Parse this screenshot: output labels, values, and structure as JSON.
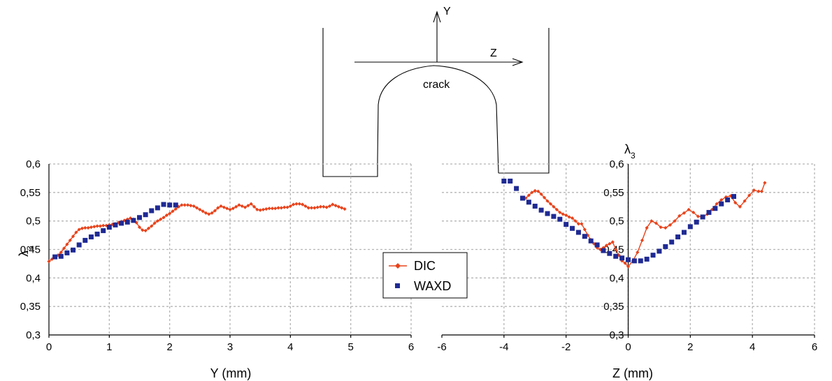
{
  "colors": {
    "dic": "#e8431b",
    "waxd": "#1f2a93",
    "grid": "#b5b5b5",
    "axis": "#000000"
  },
  "sketch": {
    "y_axis_label": "Y",
    "z_axis_label": "Z",
    "crack_label": "crack"
  },
  "legend": {
    "position": "center",
    "items": [
      {
        "label": "DIC",
        "marker": "diamond-line"
      },
      {
        "label": "WAXD",
        "marker": "square"
      }
    ]
  },
  "chart_data": [
    {
      "type": "line",
      "xlabel": "Y (mm)",
      "ylabel": "λ3",
      "ylabel_main": "λ",
      "ylabel_sub": "3",
      "xlim": [
        0,
        6
      ],
      "ylim": [
        0.3,
        0.6
      ],
      "x_ticks": [
        {
          "v": 0,
          "t": "0"
        },
        {
          "v": 1,
          "t": "1"
        },
        {
          "v": 2,
          "t": "2"
        },
        {
          "v": 3,
          "t": "3"
        },
        {
          "v": 4,
          "t": "4"
        },
        {
          "v": 5,
          "t": "5"
        },
        {
          "v": 6,
          "t": "6"
        }
      ],
      "y_ticks": [
        {
          "v": 0.3,
          "t": "0,3"
        },
        {
          "v": 0.35,
          "t": "0,35"
        },
        {
          "v": 0.4,
          "t": "0,4"
        },
        {
          "v": 0.45,
          "t": "0,45"
        },
        {
          "v": 0.5,
          "t": "0,5"
        },
        {
          "v": 0.55,
          "t": "0,55"
        },
        {
          "v": 0.6,
          "t": "0,6"
        }
      ],
      "grid": true,
      "series": [
        {
          "name": "DIC",
          "kind": "line-diamond",
          "x": [
            0.0,
            0.05,
            0.1,
            0.15,
            0.2,
            0.25,
            0.3,
            0.35,
            0.4,
            0.45,
            0.5,
            0.55,
            0.6,
            0.65,
            0.7,
            0.75,
            0.8,
            0.85,
            0.9,
            0.95,
            1.0,
            1.05,
            1.1,
            1.15,
            1.2,
            1.25,
            1.3,
            1.35,
            1.4,
            1.45,
            1.5,
            1.55,
            1.6,
            1.65,
            1.7,
            1.75,
            1.8,
            1.85,
            1.9,
            1.95,
            2.0,
            2.05,
            2.1,
            2.15,
            2.2,
            2.25,
            2.3,
            2.35,
            2.4,
            2.45,
            2.5,
            2.55,
            2.6,
            2.65,
            2.7,
            2.75,
            2.8,
            2.85,
            2.9,
            2.95,
            3.0,
            3.05,
            3.1,
            3.15,
            3.2,
            3.25,
            3.3,
            3.35,
            3.4,
            3.45,
            3.5,
            3.55,
            3.6,
            3.65,
            3.7,
            3.75,
            3.8,
            3.85,
            3.9,
            3.95,
            4.0,
            4.05,
            4.1,
            4.15,
            4.2,
            4.25,
            4.3,
            4.35,
            4.4,
            4.45,
            4.5,
            4.55,
            4.6,
            4.65,
            4.7,
            4.75,
            4.8,
            4.85,
            4.9
          ],
          "y": [
            0.429,
            0.433,
            0.437,
            0.44,
            0.445,
            0.452,
            0.459,
            0.466,
            0.473,
            0.48,
            0.485,
            0.487,
            0.488,
            0.488,
            0.489,
            0.49,
            0.491,
            0.491,
            0.492,
            0.492,
            0.493,
            0.494,
            0.495,
            0.497,
            0.499,
            0.501,
            0.503,
            0.505,
            0.503,
            0.497,
            0.489,
            0.484,
            0.483,
            0.487,
            0.491,
            0.496,
            0.5,
            0.503,
            0.506,
            0.51,
            0.513,
            0.517,
            0.521,
            0.525,
            0.528,
            0.528,
            0.528,
            0.527,
            0.526,
            0.523,
            0.52,
            0.517,
            0.514,
            0.512,
            0.514,
            0.518,
            0.523,
            0.526,
            0.524,
            0.522,
            0.52,
            0.522,
            0.525,
            0.528,
            0.526,
            0.524,
            0.527,
            0.53,
            0.525,
            0.52,
            0.519,
            0.52,
            0.521,
            0.522,
            0.522,
            0.522,
            0.523,
            0.523,
            0.524,
            0.524,
            0.526,
            0.529,
            0.53,
            0.53,
            0.529,
            0.526,
            0.523,
            0.523,
            0.523,
            0.524,
            0.525,
            0.525,
            0.524,
            0.526,
            0.529,
            0.527,
            0.525,
            0.523,
            0.521
          ]
        },
        {
          "name": "WAXD",
          "kind": "square",
          "x": [
            0.1,
            0.2,
            0.3,
            0.4,
            0.5,
            0.6,
            0.7,
            0.8,
            0.9,
            1.0,
            1.1,
            1.2,
            1.3,
            1.4,
            1.5,
            1.6,
            1.7,
            1.8,
            1.9,
            2.0,
            2.1
          ],
          "y": [
            0.437,
            0.438,
            0.444,
            0.449,
            0.458,
            0.466,
            0.472,
            0.477,
            0.483,
            0.489,
            0.493,
            0.496,
            0.498,
            0.501,
            0.506,
            0.511,
            0.518,
            0.523,
            0.529,
            0.528,
            0.528
          ]
        }
      ]
    },
    {
      "type": "line",
      "xlabel": "Z (mm)",
      "ylabel": "λ3",
      "ylabel_main": "λ",
      "ylabel_sub": "3",
      "xlim": [
        -6,
        6
      ],
      "ylim": [
        0.3,
        0.6
      ],
      "x_ticks": [
        {
          "v": -6,
          "t": "-6"
        },
        {
          "v": -4,
          "t": "-4"
        },
        {
          "v": -2,
          "t": "-2"
        },
        {
          "v": 0,
          "t": "0"
        },
        {
          "v": 2,
          "t": "2"
        },
        {
          "v": 4,
          "t": "4"
        },
        {
          "v": 6,
          "t": "6"
        }
      ],
      "y_ticks": [
        {
          "v": 0.3,
          "t": "0,3"
        },
        {
          "v": 0.35,
          "t": "0,35"
        },
        {
          "v": 0.4,
          "t": "0,4"
        },
        {
          "v": 0.45,
          "t": "0,45"
        },
        {
          "v": 0.5,
          "t": "0,5"
        },
        {
          "v": 0.55,
          "t": "0,55"
        },
        {
          "v": 0.6,
          "t": "0,6"
        }
      ],
      "grid": true,
      "series": [
        {
          "name": "DIC",
          "kind": "line-diamond",
          "x": [
            -3.3,
            -3.2,
            -3.1,
            -3.0,
            -2.9,
            -2.8,
            -2.7,
            -2.6,
            -2.5,
            -2.4,
            -2.3,
            -2.2,
            -2.1,
            -2.0,
            -1.9,
            -1.8,
            -1.7,
            -1.6,
            -1.5,
            -1.4,
            -1.3,
            -1.2,
            -1.1,
            -1.0,
            -0.9,
            -0.8,
            -0.7,
            -0.6,
            -0.5,
            -0.4,
            -0.3,
            -0.2,
            -0.1,
            0.0,
            0.15,
            0.3,
            0.45,
            0.6,
            0.75,
            0.9,
            1.05,
            1.2,
            1.35,
            1.5,
            1.65,
            1.8,
            1.95,
            2.1,
            2.25,
            2.4,
            2.55,
            2.7,
            2.85,
            3.0,
            3.15,
            3.3,
            3.45,
            3.6,
            3.75,
            3.9,
            4.05,
            4.2,
            4.3,
            4.4
          ],
          "y": [
            0.54,
            0.545,
            0.55,
            0.553,
            0.552,
            0.547,
            0.541,
            0.535,
            0.53,
            0.525,
            0.52,
            0.515,
            0.512,
            0.51,
            0.507,
            0.505,
            0.5,
            0.495,
            0.495,
            0.485,
            0.475,
            0.467,
            0.46,
            0.453,
            0.45,
            0.453,
            0.457,
            0.46,
            0.463,
            0.45,
            0.44,
            0.43,
            0.426,
            0.42,
            0.43,
            0.445,
            0.466,
            0.488,
            0.5,
            0.496,
            0.489,
            0.488,
            0.493,
            0.5,
            0.509,
            0.514,
            0.52,
            0.515,
            0.508,
            0.507,
            0.512,
            0.52,
            0.53,
            0.537,
            0.542,
            0.544,
            0.532,
            0.525,
            0.535,
            0.545,
            0.554,
            0.552,
            0.552,
            0.567
          ]
        },
        {
          "name": "WAXD",
          "kind": "square",
          "x": [
            -4.0,
            -3.8,
            -3.6,
            -3.4,
            -3.2,
            -3.0,
            -2.8,
            -2.6,
            -2.4,
            -2.2,
            -2.0,
            -1.8,
            -1.6,
            -1.4,
            -1.2,
            -1.0,
            -0.8,
            -0.6,
            -0.4,
            -0.2,
            0.0,
            0.2,
            0.4,
            0.6,
            0.8,
            1.0,
            1.2,
            1.4,
            1.6,
            1.8,
            2.0,
            2.2,
            2.4,
            2.6,
            2.8,
            3.0,
            3.2,
            3.4
          ],
          "y": [
            0.57,
            0.57,
            0.557,
            0.54,
            0.533,
            0.526,
            0.519,
            0.513,
            0.508,
            0.503,
            0.494,
            0.487,
            0.48,
            0.473,
            0.465,
            0.458,
            0.448,
            0.443,
            0.438,
            0.435,
            0.432,
            0.43,
            0.43,
            0.433,
            0.44,
            0.447,
            0.455,
            0.463,
            0.472,
            0.48,
            0.49,
            0.498,
            0.507,
            0.515,
            0.522,
            0.53,
            0.537,
            0.543
          ]
        }
      ]
    }
  ]
}
